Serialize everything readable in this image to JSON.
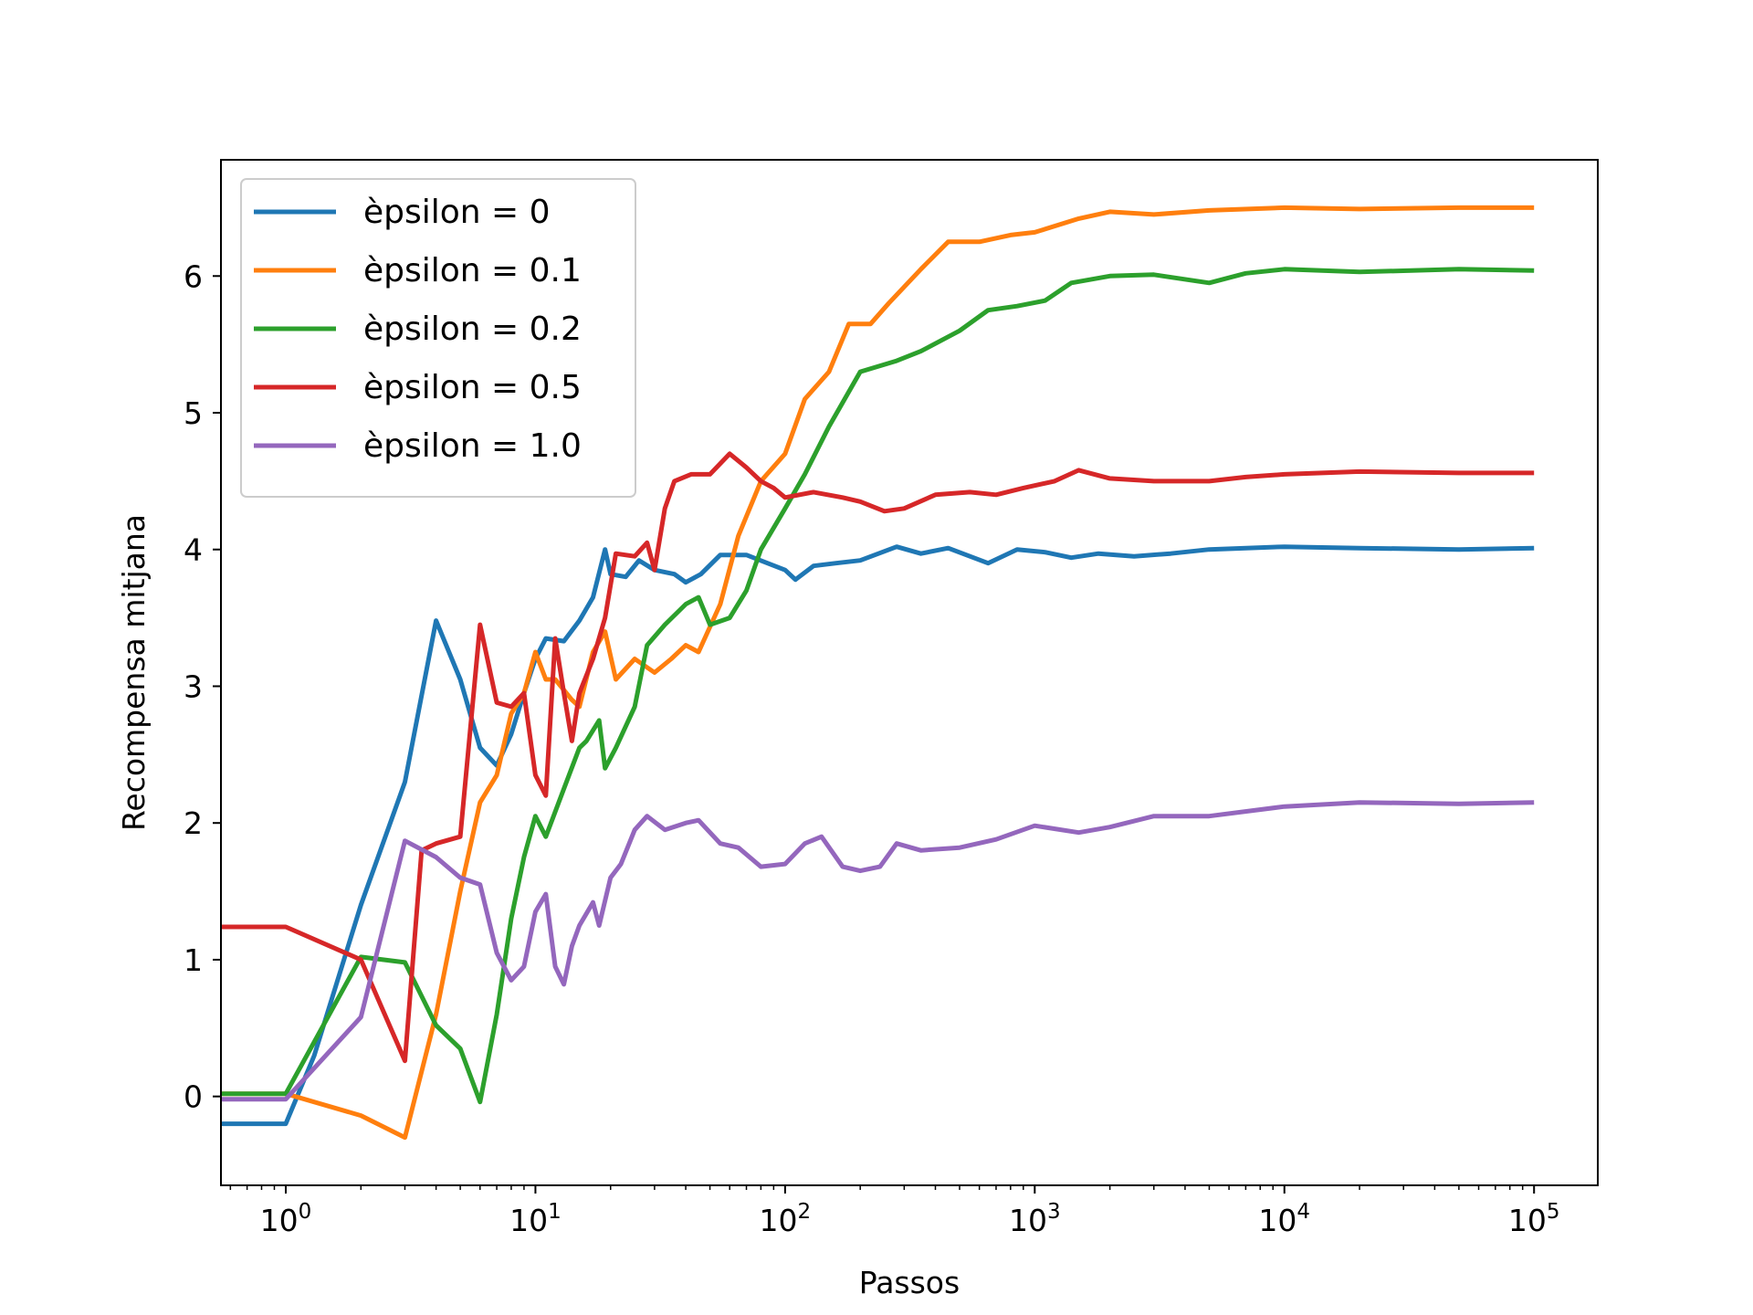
{
  "chart_data": {
    "type": "line",
    "xlabel": "Passos",
    "ylabel": "Recompensa mitjana",
    "xscale": "log",
    "xlim": [
      0.55,
      180000
    ],
    "ylim": [
      -0.65,
      6.85
    ],
    "x_ticks": [
      {
        "value": 1,
        "base": "10",
        "exp": "0"
      },
      {
        "value": 10,
        "base": "10",
        "exp": "1"
      },
      {
        "value": 100,
        "base": "10",
        "exp": "2"
      },
      {
        "value": 1000,
        "base": "10",
        "exp": "3"
      },
      {
        "value": 10000,
        "base": "10",
        "exp": "4"
      },
      {
        "value": 100000,
        "base": "10",
        "exp": "5"
      }
    ],
    "y_ticks": [
      {
        "value": 0,
        "label": "0"
      },
      {
        "value": 1,
        "label": "1"
      },
      {
        "value": 2,
        "label": "2"
      },
      {
        "value": 3,
        "label": "3"
      },
      {
        "value": 4,
        "label": "4"
      },
      {
        "value": 5,
        "label": "5"
      },
      {
        "value": 6,
        "label": "6"
      }
    ],
    "grid": false,
    "legend_position": "top-left",
    "series": [
      {
        "name": "èpsilon = 0",
        "color": "#1f77b4",
        "points": [
          [
            0.55,
            -0.2
          ],
          [
            1,
            -0.2
          ],
          [
            1.3,
            0.3
          ],
          [
            2,
            1.4
          ],
          [
            3,
            2.3
          ],
          [
            4,
            3.48
          ],
          [
            5,
            3.05
          ],
          [
            6,
            2.55
          ],
          [
            7,
            2.42
          ],
          [
            8,
            2.65
          ],
          [
            9,
            2.95
          ],
          [
            10,
            3.2
          ],
          [
            11,
            3.35
          ],
          [
            13,
            3.33
          ],
          [
            15,
            3.48
          ],
          [
            17,
            3.65
          ],
          [
            19,
            4.0
          ],
          [
            20,
            3.82
          ],
          [
            23,
            3.8
          ],
          [
            26,
            3.92
          ],
          [
            30,
            3.85
          ],
          [
            36,
            3.82
          ],
          [
            40,
            3.76
          ],
          [
            46,
            3.82
          ],
          [
            55,
            3.96
          ],
          [
            70,
            3.96
          ],
          [
            85,
            3.9
          ],
          [
            100,
            3.85
          ],
          [
            110,
            3.78
          ],
          [
            130,
            3.88
          ],
          [
            160,
            3.9
          ],
          [
            200,
            3.92
          ],
          [
            280,
            4.02
          ],
          [
            350,
            3.97
          ],
          [
            450,
            4.01
          ],
          [
            650,
            3.9
          ],
          [
            850,
            4.0
          ],
          [
            1100,
            3.98
          ],
          [
            1400,
            3.94
          ],
          [
            1800,
            3.97
          ],
          [
            2500,
            3.95
          ],
          [
            3500,
            3.97
          ],
          [
            5000,
            4.0
          ],
          [
            10000,
            4.02
          ],
          [
            20000,
            4.01
          ],
          [
            50000,
            4.0
          ],
          [
            100000,
            4.01
          ]
        ]
      },
      {
        "name": "èpsilon = 0.1",
        "color": "#ff7f0e",
        "points": [
          [
            0.55,
            0.02
          ],
          [
            1,
            0.02
          ],
          [
            2,
            -0.14
          ],
          [
            3,
            -0.3
          ],
          [
            4,
            0.6
          ],
          [
            5,
            1.5
          ],
          [
            6,
            2.15
          ],
          [
            7,
            2.35
          ],
          [
            8,
            2.8
          ],
          [
            9,
            2.95
          ],
          [
            10,
            3.25
          ],
          [
            11,
            3.05
          ],
          [
            12,
            3.05
          ],
          [
            14,
            2.9
          ],
          [
            15,
            2.85
          ],
          [
            17,
            3.25
          ],
          [
            19,
            3.4
          ],
          [
            21,
            3.05
          ],
          [
            25,
            3.2
          ],
          [
            30,
            3.1
          ],
          [
            35,
            3.2
          ],
          [
            40,
            3.3
          ],
          [
            45,
            3.25
          ],
          [
            55,
            3.6
          ],
          [
            65,
            4.1
          ],
          [
            80,
            4.5
          ],
          [
            100,
            4.7
          ],
          [
            120,
            5.1
          ],
          [
            150,
            5.3
          ],
          [
            180,
            5.65
          ],
          [
            220,
            5.65
          ],
          [
            260,
            5.8
          ],
          [
            350,
            6.05
          ],
          [
            450,
            6.25
          ],
          [
            600,
            6.25
          ],
          [
            800,
            6.3
          ],
          [
            1000,
            6.32
          ],
          [
            1500,
            6.42
          ],
          [
            2000,
            6.47
          ],
          [
            3000,
            6.45
          ],
          [
            5000,
            6.48
          ],
          [
            10000,
            6.5
          ],
          [
            20000,
            6.49
          ],
          [
            50000,
            6.5
          ],
          [
            100000,
            6.5
          ]
        ]
      },
      {
        "name": "èpsilon = 0.2",
        "color": "#2ca02c",
        "points": [
          [
            0.55,
            0.02
          ],
          [
            1,
            0.02
          ],
          [
            2,
            1.02
          ],
          [
            3,
            0.98
          ],
          [
            4,
            0.52
          ],
          [
            5,
            0.35
          ],
          [
            6,
            -0.04
          ],
          [
            7,
            0.6
          ],
          [
            8,
            1.3
          ],
          [
            9,
            1.75
          ],
          [
            10,
            2.05
          ],
          [
            11,
            1.9
          ],
          [
            13,
            2.25
          ],
          [
            15,
            2.55
          ],
          [
            16,
            2.6
          ],
          [
            18,
            2.75
          ],
          [
            19,
            2.4
          ],
          [
            21,
            2.55
          ],
          [
            25,
            2.85
          ],
          [
            28,
            3.3
          ],
          [
            33,
            3.45
          ],
          [
            40,
            3.6
          ],
          [
            45,
            3.65
          ],
          [
            50,
            3.45
          ],
          [
            60,
            3.5
          ],
          [
            70,
            3.7
          ],
          [
            80,
            4.0
          ],
          [
            100,
            4.3
          ],
          [
            120,
            4.55
          ],
          [
            150,
            4.9
          ],
          [
            200,
            5.3
          ],
          [
            280,
            5.38
          ],
          [
            350,
            5.45
          ],
          [
            500,
            5.6
          ],
          [
            650,
            5.75
          ],
          [
            850,
            5.78
          ],
          [
            1100,
            5.82
          ],
          [
            1400,
            5.95
          ],
          [
            2000,
            6.0
          ],
          [
            3000,
            6.01
          ],
          [
            5000,
            5.95
          ],
          [
            7000,
            6.02
          ],
          [
            10000,
            6.05
          ],
          [
            20000,
            6.03
          ],
          [
            50000,
            6.05
          ],
          [
            100000,
            6.04
          ]
        ]
      },
      {
        "name": "èpsilon = 0.5",
        "color": "#d62728",
        "points": [
          [
            0.55,
            1.24
          ],
          [
            1,
            1.24
          ],
          [
            2,
            1.0
          ],
          [
            3,
            0.26
          ],
          [
            3.5,
            1.8
          ],
          [
            4,
            1.85
          ],
          [
            5,
            1.9
          ],
          [
            6,
            3.45
          ],
          [
            7,
            2.88
          ],
          [
            8,
            2.85
          ],
          [
            9,
            2.95
          ],
          [
            10,
            2.35
          ],
          [
            11,
            2.2
          ],
          [
            12,
            3.35
          ],
          [
            13,
            2.95
          ],
          [
            14,
            2.6
          ],
          [
            15,
            2.95
          ],
          [
            17,
            3.2
          ],
          [
            19,
            3.5
          ],
          [
            21,
            3.97
          ],
          [
            25,
            3.95
          ],
          [
            28,
            4.05
          ],
          [
            30,
            3.85
          ],
          [
            33,
            4.3
          ],
          [
            36,
            4.5
          ],
          [
            42,
            4.55
          ],
          [
            50,
            4.55
          ],
          [
            60,
            4.7
          ],
          [
            70,
            4.6
          ],
          [
            80,
            4.5
          ],
          [
            90,
            4.45
          ],
          [
            100,
            4.38
          ],
          [
            130,
            4.42
          ],
          [
            170,
            4.38
          ],
          [
            200,
            4.35
          ],
          [
            250,
            4.28
          ],
          [
            300,
            4.3
          ],
          [
            400,
            4.4
          ],
          [
            550,
            4.42
          ],
          [
            700,
            4.4
          ],
          [
            900,
            4.45
          ],
          [
            1200,
            4.5
          ],
          [
            1500,
            4.58
          ],
          [
            2000,
            4.52
          ],
          [
            3000,
            4.5
          ],
          [
            5000,
            4.5
          ],
          [
            7000,
            4.53
          ],
          [
            10000,
            4.55
          ],
          [
            20000,
            4.57
          ],
          [
            50000,
            4.56
          ],
          [
            100000,
            4.56
          ]
        ]
      },
      {
        "name": "èpsilon = 1.0",
        "color": "#9467bd",
        "points": [
          [
            0.55,
            -0.02
          ],
          [
            1,
            -0.02
          ],
          [
            2,
            0.58
          ],
          [
            3,
            1.87
          ],
          [
            4,
            1.75
          ],
          [
            5,
            1.6
          ],
          [
            6,
            1.55
          ],
          [
            7,
            1.05
          ],
          [
            8,
            0.85
          ],
          [
            9,
            0.95
          ],
          [
            10,
            1.35
          ],
          [
            11,
            1.48
          ],
          [
            12,
            0.95
          ],
          [
            13,
            0.82
          ],
          [
            14,
            1.1
          ],
          [
            15,
            1.25
          ],
          [
            17,
            1.42
          ],
          [
            18,
            1.25
          ],
          [
            20,
            1.6
          ],
          [
            22,
            1.7
          ],
          [
            25,
            1.95
          ],
          [
            28,
            2.05
          ],
          [
            33,
            1.95
          ],
          [
            40,
            2.0
          ],
          [
            45,
            2.02
          ],
          [
            55,
            1.85
          ],
          [
            65,
            1.82
          ],
          [
            80,
            1.68
          ],
          [
            100,
            1.7
          ],
          [
            120,
            1.85
          ],
          [
            140,
            1.9
          ],
          [
            170,
            1.68
          ],
          [
            200,
            1.65
          ],
          [
            240,
            1.68
          ],
          [
            280,
            1.85
          ],
          [
            350,
            1.8
          ],
          [
            500,
            1.82
          ],
          [
            700,
            1.88
          ],
          [
            1000,
            1.98
          ],
          [
            1500,
            1.93
          ],
          [
            2000,
            1.97
          ],
          [
            3000,
            2.05
          ],
          [
            5000,
            2.05
          ],
          [
            10000,
            2.12
          ],
          [
            20000,
            2.15
          ],
          [
            50000,
            2.14
          ],
          [
            100000,
            2.15
          ]
        ]
      }
    ]
  }
}
